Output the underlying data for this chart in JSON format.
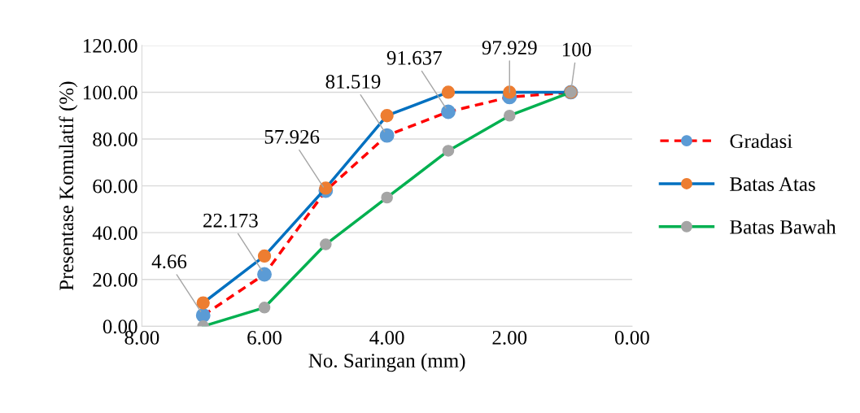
{
  "chart_data": {
    "type": "line",
    "xlabel": "No. Saringan (mm)",
    "ylabel": "Presentase Komulatif (%)",
    "x": [
      7,
      6,
      5,
      4,
      3,
      2,
      1
    ],
    "series": [
      {
        "name": "Gradasi",
        "color": "#ff0000",
        "colors": [
          "#5b9bd5",
          "#5b9bd5",
          "#5b9bd5",
          "#5b9bd5",
          "#5b9bd5",
          "#5b9bd5",
          "#5b9bd5"
        ],
        "line_style": "dashed",
        "values": [
          4.66,
          22.173,
          57.926,
          81.519,
          91.637,
          97.929,
          100
        ],
        "value_labels": [
          "4.66",
          "22.173",
          "57.926",
          "81.519",
          "91.637",
          "97.929",
          "100"
        ]
      },
      {
        "name": "Batas Atas",
        "color": "#0070c0",
        "colors": [
          "#ed7d31",
          "#ed7d31",
          "#ed7d31",
          "#ed7d31",
          "#ed7d31",
          "#ed7d31",
          "#ed7d31"
        ],
        "line_style": "solid",
        "values": [
          10,
          30,
          59,
          90,
          100,
          100,
          100
        ]
      },
      {
        "name": "Batas Bawah",
        "color": "#00b050",
        "colors": [
          "#a5a5a5",
          "#a5a5a5",
          "#a5a5a5",
          "#a5a5a5",
          "#a5a5a5",
          "#a5a5a5",
          "#a5a5a5"
        ],
        "line_style": "solid",
        "values": [
          0,
          8,
          35,
          55,
          75,
          90,
          100
        ]
      }
    ],
    "xlim": [
      8,
      0
    ],
    "xticks": [
      {
        "value": 8,
        "label": "8.00"
      },
      {
        "value": 6,
        "label": "6.00"
      },
      {
        "value": 4,
        "label": "4.00"
      },
      {
        "value": 2,
        "label": "2.00"
      },
      {
        "value": 0,
        "label": "0.00"
      }
    ],
    "ylim": [
      0,
      120
    ],
    "yticks": [
      {
        "value": 0,
        "label": "0.00"
      },
      {
        "value": 20,
        "label": "20.00"
      },
      {
        "value": 40,
        "label": "40.00"
      },
      {
        "value": 60,
        "label": "60.00"
      },
      {
        "value": 80,
        "label": "80.00"
      },
      {
        "value": 100,
        "label": "100.00"
      },
      {
        "value": 120,
        "label": "120.00"
      }
    ],
    "grid": "y",
    "legend": "right",
    "marker": "circle"
  }
}
